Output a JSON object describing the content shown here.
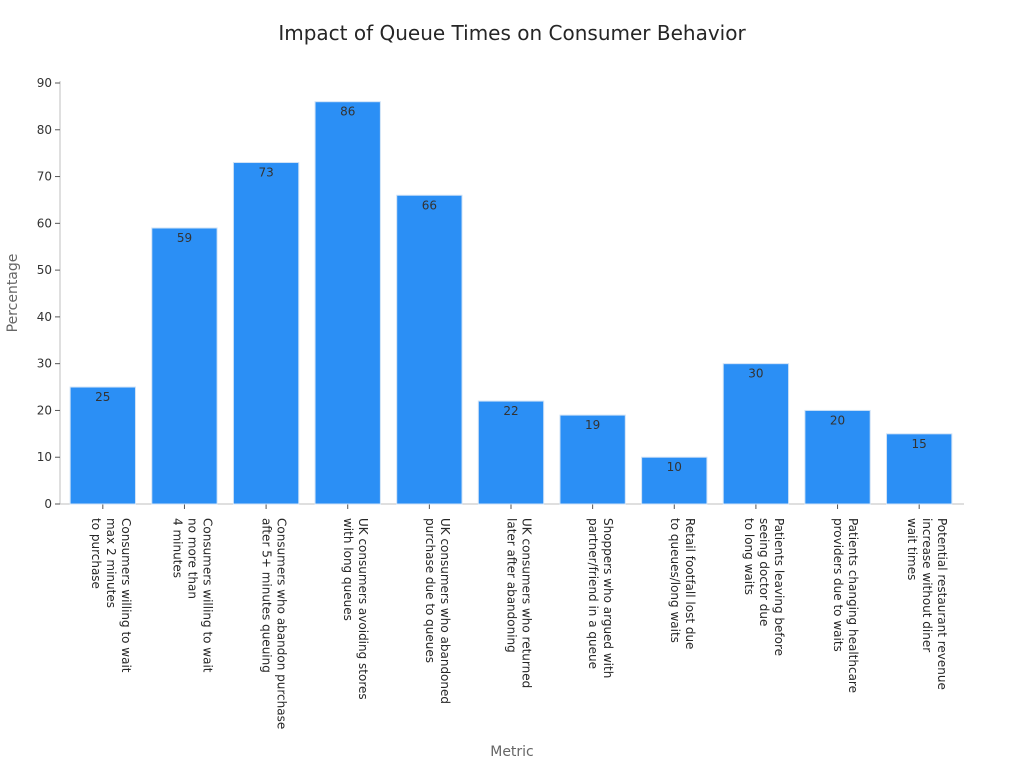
{
  "chart_data": {
    "type": "bar",
    "title": "Impact of Queue Times on Consumer Behavior",
    "xlabel": "Metric",
    "ylabel": "Percentage",
    "ylim": [
      0,
      90
    ],
    "yticks": [
      0,
      10,
      20,
      30,
      40,
      50,
      60,
      70,
      80,
      90
    ],
    "grid": false,
    "bar_color": "#2b8ff5",
    "bar_edge_color": "#cfe2f6",
    "categories": [
      [
        "Consumers willing to wait",
        "max 2 minutes",
        "to purchase"
      ],
      [
        "Consumers willing to wait",
        "no more than",
        "4 minutes"
      ],
      [
        "Consumers who abandon purchase",
        "after 5+ minutes queuing"
      ],
      [
        "UK consumers avoiding stores",
        "with long queues"
      ],
      [
        "UK consumers who abandoned",
        "purchase due to queues"
      ],
      [
        "UK consumers who returned",
        "later after abandoning"
      ],
      [
        "Shoppers who argued with",
        "partner/friend in a queue"
      ],
      [
        "Retail footfall lost due",
        "to queues/long waits"
      ],
      [
        "Patients leaving before",
        "seeing doctor due",
        "to long waits"
      ],
      [
        "Patients changing healthcare",
        "providers due to waits"
      ],
      [
        "Potential restaurant revenue",
        "increase without diner",
        "wait times"
      ]
    ],
    "values": [
      25,
      59,
      73,
      86,
      66,
      22,
      19,
      10,
      30,
      20,
      15
    ]
  }
}
